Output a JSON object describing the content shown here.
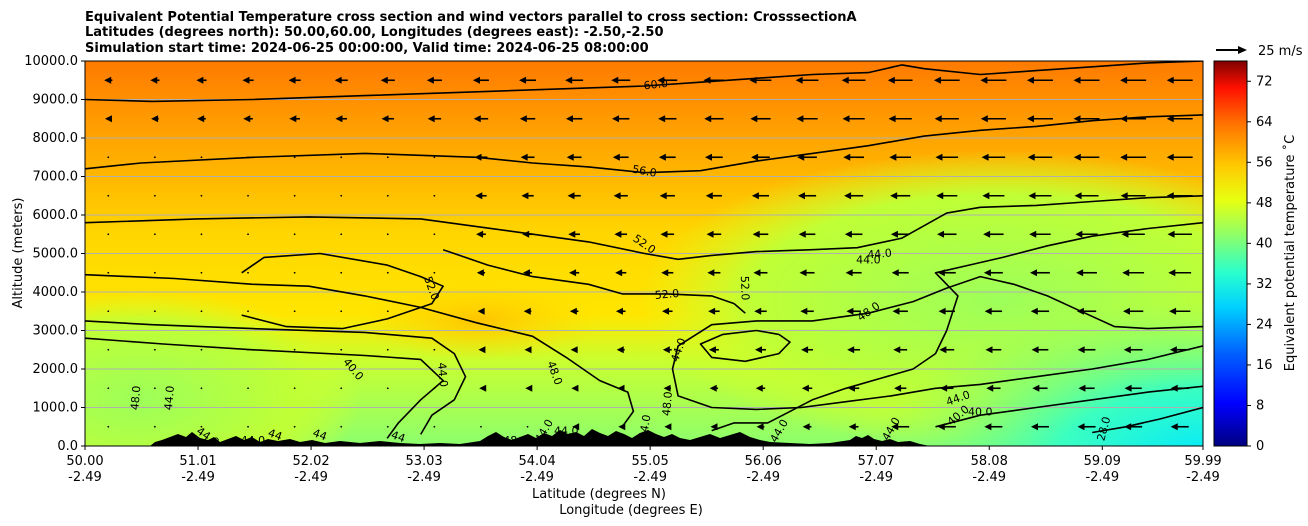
{
  "chart_data": {
    "type": "contour",
    "title_lines": [
      "Equivalent Potential Temperature cross section and wind vectors parallel to cross section: CrosssectionA",
      "Latitudes (degrees north): 50.00,60.00, Longitudes (degrees east): -2.50,-2.50",
      "Simulation start time: 2024-06-25 00:00:00, Valid time: 2024-06-25 08:00:00"
    ],
    "xlabel": "Latitude (degrees N)",
    "xlabel2": "Longitude (degrees E)",
    "ylabel": "Altitude (meters)",
    "xlim": [
      50.0,
      59.99
    ],
    "ylim": [
      0,
      10000
    ],
    "x_ticks": [
      {
        "lat": "50.00",
        "lon": "-2.49",
        "value": 50.0
      },
      {
        "lat": "51.01",
        "lon": "-2.49",
        "value": 51.01
      },
      {
        "lat": "52.02",
        "lon": "-2.49",
        "value": 52.02
      },
      {
        "lat": "53.03",
        "lon": "-2.49",
        "value": 53.03
      },
      {
        "lat": "54.04",
        "lon": "-2.49",
        "value": 54.04
      },
      {
        "lat": "55.05",
        "lon": "-2.49",
        "value": 55.05
      },
      {
        "lat": "56.06",
        "lon": "-2.49",
        "value": 56.06
      },
      {
        "lat": "57.07",
        "lon": "-2.49",
        "value": 57.07
      },
      {
        "lat": "58.08",
        "lon": "-2.49",
        "value": 58.08
      },
      {
        "lat": "59.09",
        "lon": "-2.49",
        "value": 59.09
      },
      {
        "lat": "59.99",
        "lon": "-2.49",
        "value": 59.99
      }
    ],
    "y_ticks": [
      {
        "label": "0.0",
        "value": 0
      },
      {
        "label": "1000.0",
        "value": 1000
      },
      {
        "label": "2000.0",
        "value": 2000
      },
      {
        "label": "3000.0",
        "value": 3000
      },
      {
        "label": "4000.0",
        "value": 4000
      },
      {
        "label": "5000.0",
        "value": 5000
      },
      {
        "label": "6000.0",
        "value": 6000
      },
      {
        "label": "7000.0",
        "value": 7000
      },
      {
        "label": "8000.0",
        "value": 8000
      },
      {
        "label": "9000.0",
        "value": 9000
      },
      {
        "label": "10000.0",
        "value": 10000
      }
    ],
    "grid": "horizontal",
    "colorbar": {
      "label": "Equivalent potential temperature $^\\circ$C",
      "label_display": "Equivalent potential temperature ˚C",
      "range": [
        0,
        76
      ],
      "ticks": [
        {
          "label": "0",
          "value": 0
        },
        {
          "label": "8",
          "value": 8
        },
        {
          "label": "16",
          "value": 16
        },
        {
          "label": "24",
          "value": 24
        },
        {
          "label": "32",
          "value": 32
        },
        {
          "label": "40",
          "value": 40
        },
        {
          "label": "48",
          "value": 48
        },
        {
          "label": "56",
          "value": 56
        },
        {
          "label": "64",
          "value": 64
        },
        {
          "label": "72",
          "value": 72
        }
      ]
    },
    "wind_key": {
      "label": "25 m/s",
      "value": 25
    },
    "contours": [
      {
        "level": 60,
        "points": [
          [
            50.0,
            9000
          ],
          [
            50.6,
            8950
          ],
          [
            51.5,
            9000
          ],
          [
            52.5,
            9100
          ],
          [
            53.5,
            9200
          ],
          [
            54.5,
            9300
          ],
          [
            55.0,
            9350
          ],
          [
            55.5,
            9450
          ],
          [
            56.0,
            9550
          ],
          [
            56.5,
            9650
          ],
          [
            57.0,
            9700
          ],
          [
            57.3,
            9900
          ],
          [
            57.5,
            9800
          ],
          [
            58.0,
            9650
          ],
          [
            58.5,
            9750
          ],
          [
            59.0,
            9850
          ],
          [
            59.5,
            9950
          ],
          [
            59.99,
            10000
          ]
        ]
      },
      {
        "level": 56,
        "points": [
          [
            50.0,
            7200
          ],
          [
            50.5,
            7350
          ],
          [
            51.5,
            7500
          ],
          [
            52.5,
            7600
          ],
          [
            53.5,
            7500
          ],
          [
            54.0,
            7350
          ],
          [
            54.5,
            7250
          ],
          [
            55.0,
            7100
          ],
          [
            55.5,
            7150
          ],
          [
            56.0,
            7400
          ],
          [
            56.5,
            7600
          ],
          [
            57.0,
            7800
          ],
          [
            57.5,
            8050
          ],
          [
            58.0,
            8200
          ],
          [
            58.5,
            8300
          ],
          [
            59.0,
            8450
          ],
          [
            59.5,
            8550
          ],
          [
            59.99,
            8600
          ]
        ]
      },
      {
        "level": 52,
        "points": [
          [
            50.0,
            5800
          ],
          [
            51.0,
            5900
          ],
          [
            52.0,
            5950
          ],
          [
            53.0,
            5900
          ],
          [
            53.5,
            5700
          ],
          [
            54.0,
            5500
          ],
          [
            54.5,
            5300
          ],
          [
            55.0,
            5000
          ],
          [
            55.3,
            4850
          ],
          [
            55.6,
            4950
          ],
          [
            56.0,
            5050
          ],
          [
            56.5,
            5100
          ],
          [
            56.9,
            5150
          ],
          [
            57.3,
            5400
          ],
          [
            57.7,
            6050
          ],
          [
            58.0,
            6200
          ],
          [
            58.5,
            6250
          ],
          [
            59.0,
            6350
          ],
          [
            59.5,
            6450
          ],
          [
            59.99,
            6500
          ]
        ]
      },
      {
        "level": 52,
        "points": [
          [
            51.4,
            4500
          ],
          [
            51.6,
            4900
          ],
          [
            52.1,
            5000
          ],
          [
            52.7,
            4700
          ],
          [
            53.0,
            4400
          ],
          [
            53.2,
            4150
          ],
          [
            53.1,
            3700
          ],
          [
            52.7,
            3300
          ],
          [
            52.3,
            3050
          ],
          [
            51.8,
            3100
          ],
          [
            51.4,
            3400
          ]
        ]
      },
      {
        "level": 52,
        "points": [
          [
            53.2,
            5100
          ],
          [
            53.6,
            4700
          ],
          [
            54.0,
            4400
          ],
          [
            54.5,
            4200
          ],
          [
            54.8,
            3950
          ],
          [
            55.2,
            3950
          ],
          [
            55.6,
            3900
          ],
          [
            55.8,
            3700
          ],
          [
            55.9,
            3450
          ]
        ]
      },
      {
        "level": 48,
        "points": [
          [
            50.0,
            4450
          ],
          [
            50.8,
            4350
          ],
          [
            51.5,
            4200
          ],
          [
            52.0,
            4150
          ],
          [
            52.5,
            3900
          ],
          [
            53.0,
            3600
          ],
          [
            53.5,
            3200
          ],
          [
            54.0,
            2850
          ],
          [
            54.3,
            2300
          ],
          [
            54.6,
            1700
          ],
          [
            54.85,
            1400
          ],
          [
            54.9,
            900
          ],
          [
            54.8,
            500
          ]
        ]
      },
      {
        "level": 48,
        "points": [
          [
            59.99,
            2600
          ],
          [
            59.5,
            2250
          ],
          [
            59.0,
            2000
          ],
          [
            58.5,
            1800
          ],
          [
            58.0,
            1600
          ],
          [
            57.6,
            1500
          ],
          [
            57.2,
            1300
          ],
          [
            56.8,
            1150
          ],
          [
            56.4,
            1000
          ],
          [
            56.0,
            950
          ],
          [
            55.6,
            1000
          ],
          [
            55.3,
            1300
          ],
          [
            55.25,
            2000
          ],
          [
            55.3,
            2600
          ],
          [
            55.6,
            3150
          ],
          [
            56.0,
            3250
          ],
          [
            56.5,
            3250
          ],
          [
            57.0,
            3450
          ],
          [
            57.4,
            3750
          ],
          [
            57.7,
            4100
          ],
          [
            58.0,
            4400
          ],
          [
            58.3,
            4200
          ],
          [
            58.6,
            3900
          ],
          [
            58.9,
            3500
          ],
          [
            59.2,
            3100
          ],
          [
            59.5,
            3050
          ],
          [
            59.99,
            3100
          ]
        ]
      },
      {
        "level": 44,
        "points": [
          [
            50.0,
            3250
          ],
          [
            50.6,
            3150
          ],
          [
            51.5,
            3050
          ],
          [
            52.5,
            2950
          ],
          [
            53.1,
            2800
          ],
          [
            53.3,
            2400
          ],
          [
            53.4,
            1800
          ],
          [
            53.3,
            1200
          ],
          [
            53.1,
            800
          ],
          [
            53.0,
            300
          ]
        ]
      },
      {
        "level": 44,
        "points": [
          [
            55.6,
            400
          ],
          [
            55.8,
            600
          ],
          [
            56.1,
            600
          ],
          [
            56.3,
            900
          ],
          [
            56.5,
            1200
          ],
          [
            56.8,
            1500
          ],
          [
            57.1,
            1750
          ],
          [
            57.4,
            2000
          ],
          [
            57.6,
            2400
          ],
          [
            57.7,
            3000
          ],
          [
            57.8,
            3900
          ],
          [
            57.6,
            4500
          ],
          [
            57.9,
            4700
          ],
          [
            58.2,
            4900
          ],
          [
            58.6,
            5200
          ],
          [
            59.0,
            5450
          ],
          [
            59.5,
            5650
          ],
          [
            59.99,
            5800
          ]
        ]
      },
      {
        "level": 44,
        "points": [
          [
            56.2,
            2900
          ],
          [
            56.0,
            3000
          ],
          [
            55.7,
            2900
          ],
          [
            55.5,
            2650
          ],
          [
            55.6,
            2300
          ],
          [
            55.9,
            2200
          ],
          [
            56.2,
            2400
          ],
          [
            56.3,
            2700
          ],
          [
            56.2,
            2900
          ]
        ]
      },
      {
        "level": 40,
        "points": [
          [
            50.0,
            2800
          ],
          [
            50.7,
            2650
          ],
          [
            51.5,
            2500
          ],
          [
            52.5,
            2350
          ],
          [
            53.0,
            2250
          ],
          [
            53.2,
            1700
          ],
          [
            53.0,
            1200
          ],
          [
            52.8,
            600
          ],
          [
            52.7,
            200
          ]
        ]
      },
      {
        "level": 40,
        "points": [
          [
            57.6,
            500
          ],
          [
            58.0,
            800
          ],
          [
            58.5,
            1000
          ],
          [
            59.0,
            1200
          ],
          [
            59.5,
            1400
          ],
          [
            59.99,
            1550
          ]
        ]
      },
      {
        "level": 28,
        "points": [
          [
            59.0,
            350
          ],
          [
            59.3,
            500
          ],
          [
            59.6,
            700
          ],
          [
            59.99,
            1000
          ]
        ]
      }
    ],
    "contour_labels": [
      {
        "text": "60.0",
        "x": 55.1,
        "y": 9400,
        "rot": -6
      },
      {
        "text": "56.0",
        "x": 55.0,
        "y": 7150,
        "rot": 10
      },
      {
        "text": "52.0",
        "x": 55.0,
        "y": 5250,
        "rot": 35
      },
      {
        "text": "52.0",
        "x": 53.1,
        "y": 4100,
        "rot": 70
      },
      {
        "text": "52.0",
        "x": 55.2,
        "y": 3950,
        "rot": -5
      },
      {
        "text": "52.0",
        "x": 55.9,
        "y": 4100,
        "rot": 88
      },
      {
        "text": "44.0",
        "x": 57.1,
        "y": 5000,
        "rot": -5
      },
      {
        "text": "44.0",
        "x": 57.0,
        "y": 4850,
        "rot": 0
      },
      {
        "text": "48.0",
        "x": 57.0,
        "y": 3500,
        "rot": -35
      },
      {
        "text": "40.0",
        "x": 52.4,
        "y": 2000,
        "rot": 50
      },
      {
        "text": "44.0",
        "x": 53.2,
        "y": 1850,
        "rot": 85
      },
      {
        "text": "48.0",
        "x": 54.2,
        "y": 1900,
        "rot": 70
      },
      {
        "text": "44.0",
        "x": 55.3,
        "y": 2500,
        "rot": -70
      },
      {
        "text": "48.0",
        "x": 55.2,
        "y": 1100,
        "rot": -85
      },
      {
        "text": "48.0",
        "x": 50.45,
        "y": 1250,
        "rot": -85
      },
      {
        "text": "44.0",
        "x": 50.75,
        "y": 1250,
        "rot": -85
      },
      {
        "text": "44.0",
        "x": 57.8,
        "y": 1250,
        "rot": -20
      },
      {
        "text": "40.0",
        "x": 58.0,
        "y": 900,
        "rot": 0
      },
      {
        "text": "40.0",
        "x": 57.8,
        "y": 800,
        "rot": -40
      },
      {
        "text": "28.0",
        "x": 59.1,
        "y": 450,
        "rot": -75
      },
      {
        "text": "44.0",
        "x": 51.1,
        "y": 250,
        "rot": 35
      },
      {
        "text": "44.0",
        "x": 51.5,
        "y": 150,
        "rot": 0
      },
      {
        "text": "44",
        "x": 51.7,
        "y": 300,
        "rot": 20
      },
      {
        "text": "44",
        "x": 52.1,
        "y": 300,
        "rot": 20
      },
      {
        "text": "44",
        "x": 52.8,
        "y": 250,
        "rot": 20
      },
      {
        "text": "44.0",
        "x": 54.1,
        "y": 400,
        "rot": -60
      },
      {
        "text": "44.0",
        "x": 54.3,
        "y": 400,
        "rot": 0
      },
      {
        "text": "44.0",
        "x": 55.0,
        "y": 500,
        "rot": -80
      },
      {
        "text": "48",
        "x": 53.8,
        "y": 150,
        "rot": 0
      },
      {
        "text": "44.0",
        "x": 56.2,
        "y": 400,
        "rot": -60
      },
      {
        "text": "44.0",
        "x": 57.2,
        "y": 450,
        "rot": -60
      }
    ]
  }
}
